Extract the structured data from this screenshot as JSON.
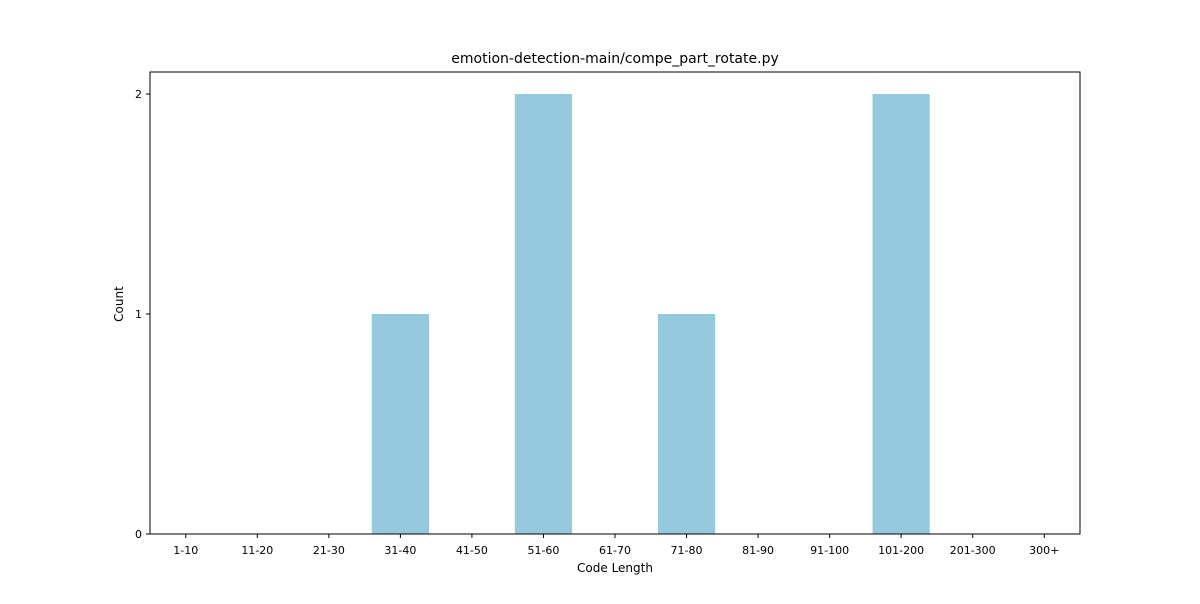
{
  "chart_data": {
    "type": "bar",
    "title": "emotion-detection-main/compe_part_rotate.py",
    "xlabel": "Code Length",
    "ylabel": "Count",
    "categories": [
      "1-10",
      "11-20",
      "21-30",
      "31-40",
      "41-50",
      "51-60",
      "61-70",
      "71-80",
      "81-90",
      "91-100",
      "101-200",
      "201-300",
      "300+"
    ],
    "values": [
      0,
      0,
      0,
      1,
      0,
      2,
      0,
      1,
      0,
      0,
      2,
      0,
      0
    ],
    "ylim": [
      0,
      2.1
    ],
    "yticks": [
      0,
      1,
      2
    ],
    "grid": false,
    "legend": "none",
    "bar_color": "#96c9de"
  }
}
